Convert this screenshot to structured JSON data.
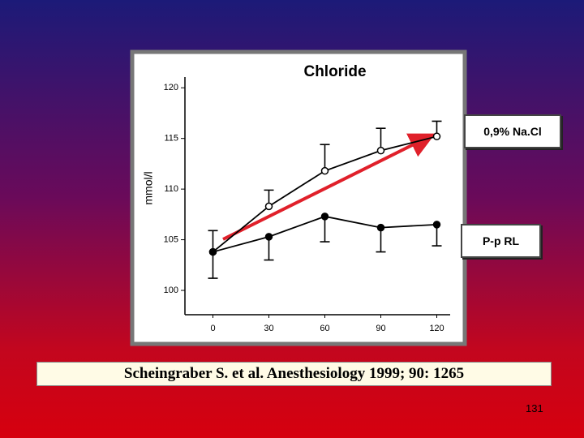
{
  "chart_data": {
    "type": "line",
    "title": "Chloride",
    "y_label": "mmol/l",
    "x": [
      0,
      30,
      60,
      90,
      120
    ],
    "xlim": [
      -15,
      125
    ],
    "xticks": [
      0,
      30,
      60,
      90,
      120
    ],
    "ylim": [
      97.6,
      121.3
    ],
    "yticks": [
      100,
      105,
      110,
      115,
      120
    ],
    "series": [
      {
        "name": "0,9% Na.Cl",
        "color": "#000000",
        "marker": "open",
        "error_direction": "up",
        "values": [
          103.8,
          108.3,
          111.8,
          113.8,
          115.2
        ],
        "errors": [
          2.1,
          1.6,
          2.6,
          2.2,
          1.5
        ]
      },
      {
        "name": "P-p RL",
        "color": "#000000",
        "marker": "filled",
        "error_direction": "down",
        "values": [
          103.8,
          105.3,
          107.3,
          106.2,
          106.5
        ],
        "errors": [
          2.6,
          2.3,
          2.5,
          2.4,
          2.1
        ]
      }
    ]
  },
  "citation": "Scheingraber S. et al.  Anesthesiology 1999; 90: 1265",
  "page_number": "131"
}
